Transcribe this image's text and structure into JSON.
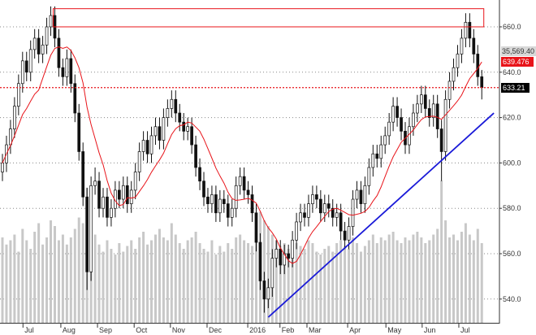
{
  "chart_data": {
    "type": "candlestick",
    "title": "",
    "xlabel": "",
    "ylabel": "",
    "ylim": [
      531,
      672
    ],
    "grid": true,
    "y_ticks": [
      540,
      560,
      580,
      600,
      620,
      640,
      660
    ],
    "y_tick_labels": [
      "540.0",
      "560.0",
      "580.0",
      "600.0",
      "620.0",
      "640.0",
      "660.0"
    ],
    "x_ticks": [
      {
        "label": "Jul",
        "bar": 5.1
      },
      {
        "label": "Aug",
        "bar": 14.5
      },
      {
        "label": "Sep",
        "bar": 23.6
      },
      {
        "label": "Oct",
        "bar": 32.7
      },
      {
        "label": "Nov",
        "bar": 41.7
      },
      {
        "label": "Dec",
        "bar": 50.8
      },
      {
        "label": "2016",
        "bar": 60.9
      },
      {
        "label": "Feb",
        "bar": 68.9
      },
      {
        "label": "Mar",
        "bar": 75.6
      },
      {
        "label": "Apr",
        "bar": 85.7
      },
      {
        "label": "May",
        "bar": 95.2
      },
      {
        "label": "Jun",
        "bar": 104.2
      },
      {
        "label": "Jul",
        "bar": 113.3
      }
    ],
    "ohlc": [
      [
        596,
        604,
        592,
        600
      ],
      [
        600,
        612,
        596,
        608
      ],
      [
        608,
        619,
        604,
        615
      ],
      [
        615,
        629,
        611,
        625
      ],
      [
        625,
        639,
        621,
        635
      ],
      [
        635,
        649,
        631,
        645
      ],
      [
        645,
        649,
        636,
        640
      ],
      [
        640,
        654,
        636,
        650
      ],
      [
        650,
        659,
        646,
        655
      ],
      [
        655,
        659,
        644,
        648
      ],
      [
        648,
        656,
        644,
        652
      ],
      [
        652,
        664,
        648,
        660
      ],
      [
        660,
        669,
        656,
        665
      ],
      [
        665,
        669,
        651,
        655
      ],
      [
        655,
        659,
        638,
        642
      ],
      [
        642,
        646,
        634,
        638
      ],
      [
        638,
        650,
        634,
        646
      ],
      [
        646,
        650,
        631,
        635
      ],
      [
        635,
        639,
        618,
        622
      ],
      [
        622,
        626,
        601,
        605
      ],
      [
        605,
        609,
        581,
        585
      ],
      [
        585,
        589,
        544,
        552
      ],
      [
        552,
        594,
        548,
        590
      ],
      [
        590,
        598,
        586,
        592
      ],
      [
        592,
        596,
        576,
        580
      ],
      [
        580,
        589,
        576,
        585
      ],
      [
        585,
        589,
        572,
        576
      ],
      [
        576,
        584,
        572,
        580
      ],
      [
        580,
        592,
        576,
        588
      ],
      [
        588,
        592,
        580,
        584
      ],
      [
        584,
        594,
        580,
        590
      ],
      [
        590,
        594,
        578,
        582
      ],
      [
        582,
        592,
        578,
        588
      ],
      [
        588,
        600,
        584,
        596
      ],
      [
        596,
        609,
        592,
        605
      ],
      [
        605,
        614,
        601,
        610
      ],
      [
        610,
        614,
        600,
        604
      ],
      [
        604,
        616,
        600,
        612
      ],
      [
        612,
        620,
        608,
        616
      ],
      [
        616,
        620,
        606,
        610
      ],
      [
        610,
        624,
        606,
        620
      ],
      [
        620,
        628,
        616,
        624
      ],
      [
        624,
        632,
        620,
        628
      ],
      [
        628,
        632,
        618,
        622
      ],
      [
        622,
        626,
        614,
        618
      ],
      [
        618,
        622,
        610,
        614
      ],
      [
        614,
        620,
        610,
        616
      ],
      [
        616,
        620,
        604,
        608
      ],
      [
        608,
        612,
        594,
        598
      ],
      [
        598,
        602,
        588,
        592
      ],
      [
        592,
        596,
        581,
        585
      ],
      [
        585,
        589,
        578,
        582
      ],
      [
        582,
        590,
        578,
        586
      ],
      [
        586,
        590,
        574,
        578
      ],
      [
        578,
        588,
        574,
        584
      ],
      [
        584,
        588,
        578,
        582
      ],
      [
        582,
        586,
        572,
        576
      ],
      [
        576,
        584,
        572,
        580
      ],
      [
        580,
        594,
        576,
        590
      ],
      [
        590,
        598,
        586,
        594
      ],
      [
        594,
        598,
        584,
        588
      ],
      [
        588,
        592,
        582,
        586
      ],
      [
        586,
        590,
        574,
        578
      ],
      [
        578,
        582,
        561,
        565
      ],
      [
        565,
        569,
        544,
        548
      ],
      [
        548,
        552,
        534,
        540
      ],
      [
        540,
        549,
        536,
        545
      ],
      [
        545,
        562,
        541,
        558
      ],
      [
        558,
        566,
        554,
        562
      ],
      [
        562,
        566,
        551,
        555
      ],
      [
        555,
        564,
        551,
        560
      ],
      [
        560,
        564,
        554,
        558
      ],
      [
        558,
        570,
        554,
        566
      ],
      [
        566,
        578,
        562,
        574
      ],
      [
        574,
        582,
        570,
        578
      ],
      [
        578,
        582,
        572,
        576
      ],
      [
        576,
        586,
        572,
        582
      ],
      [
        582,
        590,
        578,
        586
      ],
      [
        586,
        590,
        580,
        584
      ],
      [
        584,
        588,
        574,
        578
      ],
      [
        578,
        586,
        574,
        582
      ],
      [
        582,
        586,
        576,
        580
      ],
      [
        580,
        584,
        572,
        576
      ],
      [
        576,
        582,
        572,
        578
      ],
      [
        578,
        582,
        566,
        570
      ],
      [
        570,
        574,
        562,
        566
      ],
      [
        566,
        576,
        562,
        572
      ],
      [
        572,
        588,
        568,
        584
      ],
      [
        584,
        592,
        580,
        588
      ],
      [
        588,
        592,
        578,
        582
      ],
      [
        582,
        594,
        578,
        590
      ],
      [
        590,
        602,
        586,
        598
      ],
      [
        598,
        608,
        594,
        604
      ],
      [
        604,
        608,
        598,
        602
      ],
      [
        602,
        612,
        598,
        608
      ],
      [
        608,
        616,
        604,
        612
      ],
      [
        612,
        622,
        608,
        618
      ],
      [
        618,
        629,
        614,
        625
      ],
      [
        625,
        629,
        616,
        620
      ],
      [
        620,
        624,
        610,
        614
      ],
      [
        614,
        618,
        604,
        608
      ],
      [
        608,
        620,
        604,
        616
      ],
      [
        616,
        626,
        612,
        622
      ],
      [
        622,
        630,
        618,
        626
      ],
      [
        626,
        634,
        622,
        630
      ],
      [
        630,
        634,
        620,
        624
      ],
      [
        624,
        628,
        616,
        620
      ],
      [
        620,
        630,
        616,
        626
      ],
      [
        626,
        630,
        611,
        615
      ],
      [
        615,
        619,
        592,
        605
      ],
      [
        605,
        632,
        601,
        628
      ],
      [
        628,
        640,
        624,
        636
      ],
      [
        636,
        646,
        632,
        642
      ],
      [
        642,
        652,
        638,
        648
      ],
      [
        648,
        659,
        644,
        655
      ],
      [
        655,
        666,
        651,
        662
      ],
      [
        662,
        666,
        651,
        655
      ],
      [
        655,
        659,
        644,
        648
      ],
      [
        648,
        652,
        634,
        638
      ],
      [
        638,
        641,
        628,
        633.21
      ]
    ],
    "volume": [
      60,
      55,
      58,
      62,
      50,
      66,
      58,
      52,
      64,
      70,
      55,
      60,
      72,
      68,
      58,
      62,
      55,
      60,
      66,
      74,
      70,
      95,
      80,
      62,
      55,
      50,
      58,
      52,
      48,
      56,
      50,
      54,
      58,
      52,
      60,
      64,
      55,
      58,
      62,
      66,
      60,
      58,
      70,
      62,
      56,
      52,
      58,
      60,
      64,
      56,
      52,
      50,
      58,
      48,
      54,
      50,
      56,
      52,
      60,
      62,
      58,
      56,
      54,
      64,
      78,
      72,
      68,
      62,
      58,
      54,
      56,
      52,
      50,
      56,
      54,
      52,
      58,
      56,
      50,
      48,
      52,
      54,
      50,
      56,
      58,
      54,
      52,
      60,
      56,
      50,
      54,
      58,
      62,
      56,
      60,
      58,
      62,
      64,
      58,
      56,
      60,
      58,
      62,
      64,
      60,
      56,
      58,
      62,
      66,
      100,
      72,
      60,
      62,
      58,
      64,
      70,
      62,
      58,
      66,
      56
    ],
    "series": [
      {
        "name": "",
        "type": "moving-average",
        "color": "#e8141a"
      }
    ],
    "readouts": {
      "volume_label": "35,569.40",
      "ma_label": "639.476",
      "last_price_label": "633.21"
    },
    "annotations": {
      "resistance_box": {
        "price_low": 660,
        "price_high": 668,
        "bar_start": 12.6,
        "bar_end": 119.5,
        "color": "#e8141a"
      },
      "last_price_line": {
        "price": 633.21,
        "color": "#e8141a"
      },
      "trendline": {
        "bar_start": 66,
        "price_start": 532,
        "bar_end": 122,
        "price_end": 622,
        "color": "#1a1ad8"
      }
    },
    "colors": {
      "candle_up": "#ffffff",
      "candle_down": "#111111",
      "volume": "#c8c8c8",
      "grid": "#888888"
    }
  }
}
